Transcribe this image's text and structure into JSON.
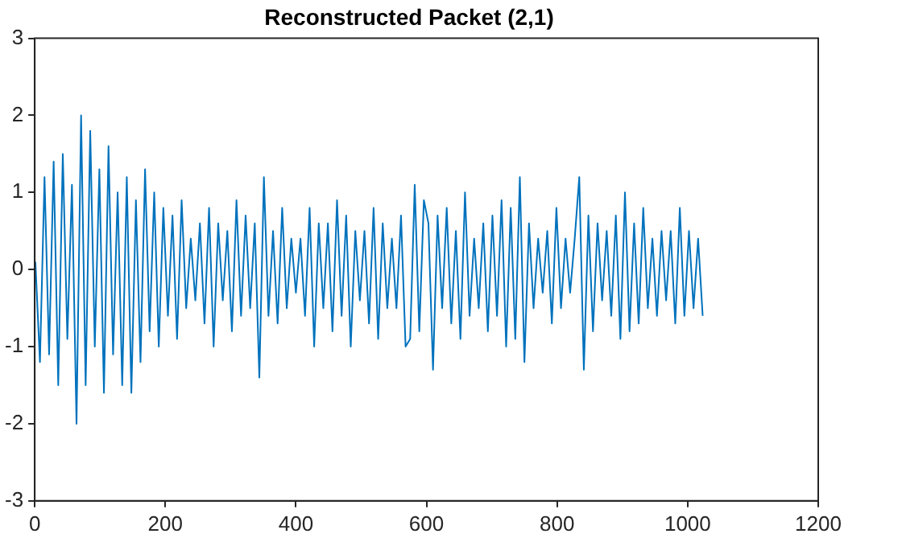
{
  "chart_data": {
    "type": "line",
    "title": "Reconstructed Packet (2,1)",
    "series": [
      {
        "color": "#0072bd",
        "x": [
          1,
          8,
          15,
          22,
          29,
          36,
          43,
          50,
          57,
          64,
          71,
          78,
          85,
          92,
          99,
          106,
          113,
          120,
          127,
          134,
          141,
          148,
          155,
          162,
          169,
          176,
          183,
          190,
          197,
          204,
          211,
          218,
          225,
          232,
          239,
          246,
          253,
          260,
          267,
          274,
          281,
          288,
          295,
          302,
          309,
          316,
          323,
          330,
          337,
          344,
          351,
          358,
          365,
          372,
          379,
          386,
          393,
          400,
          407,
          414,
          421,
          428,
          435,
          442,
          449,
          456,
          463,
          470,
          477,
          484,
          491,
          498,
          505,
          512,
          519,
          526,
          533,
          540,
          547,
          554,
          561,
          568,
          575,
          582,
          589,
          596,
          603,
          610,
          617,
          624,
          631,
          638,
          645,
          652,
          659,
          666,
          673,
          680,
          687,
          694,
          701,
          708,
          715,
          722,
          729,
          736,
          743,
          750,
          757,
          764,
          771,
          778,
          785,
          792,
          799,
          806,
          813,
          820,
          827,
          834,
          841,
          848,
          855,
          862,
          869,
          876,
          883,
          890,
          897,
          904,
          911,
          918,
          925,
          932,
          939,
          946,
          953,
          960,
          967,
          974,
          981,
          988,
          995,
          1002,
          1009,
          1016,
          1023
        ],
        "values": [
          0.1,
          -1.2,
          1.2,
          -1.1,
          1.4,
          -1.5,
          1.5,
          -0.9,
          1.1,
          -2.0,
          2.0,
          -1.5,
          1.8,
          -1.0,
          1.3,
          -1.6,
          1.6,
          -1.1,
          1.0,
          -1.5,
          1.2,
          -1.6,
          0.9,
          -1.2,
          1.3,
          -0.8,
          1.0,
          -1.0,
          0.8,
          -0.6,
          0.7,
          -0.9,
          0.9,
          -0.5,
          0.4,
          -0.4,
          0.6,
          -0.7,
          0.8,
          -1.0,
          0.6,
          -0.4,
          0.5,
          -0.8,
          0.9,
          -0.6,
          0.7,
          -0.5,
          0.6,
          -1.4,
          1.2,
          -0.6,
          0.5,
          -0.7,
          0.8,
          -0.5,
          0.4,
          -0.3,
          0.4,
          -0.6,
          0.8,
          -1.0,
          0.6,
          -0.5,
          0.6,
          -0.8,
          0.9,
          -0.6,
          0.7,
          -1.0,
          0.5,
          -0.4,
          0.5,
          -0.7,
          0.8,
          -0.9,
          0.6,
          -0.5,
          0.4,
          -0.5,
          0.7,
          -1.0,
          -0.9,
          1.1,
          -0.8,
          0.9,
          0.6,
          -1.3,
          0.7,
          -0.5,
          0.8,
          -0.7,
          0.5,
          -0.9,
          1.0,
          -0.6,
          0.4,
          -0.5,
          0.6,
          -0.8,
          0.7,
          -0.6,
          0.9,
          -1.0,
          0.8,
          -0.9,
          1.2,
          -1.2,
          0.6,
          -0.5,
          0.4,
          -0.3,
          0.5,
          -0.7,
          0.8,
          -0.5,
          0.4,
          -0.3,
          0.4,
          1.2,
          -1.3,
          0.7,
          -0.8,
          0.6,
          -0.4,
          0.5,
          -0.6,
          0.7,
          -0.9,
          1.0,
          -0.8,
          0.6,
          -0.7,
          0.8,
          -0.5,
          0.4,
          -0.6,
          0.5,
          -0.4,
          0.5,
          -0.7,
          0.8,
          -0.6,
          0.5,
          -0.5,
          0.4,
          -0.6
        ]
      }
    ],
    "xlim": [
      0,
      1200
    ],
    "xticks": [
      0,
      200,
      400,
      600,
      800,
      1000,
      1200
    ],
    "ylim": [
      -3,
      3
    ],
    "yticks": [
      -3,
      -2,
      -1,
      0,
      1,
      2,
      3
    ],
    "grid": false,
    "legend": false,
    "marker": "none",
    "line_style": "solid"
  }
}
